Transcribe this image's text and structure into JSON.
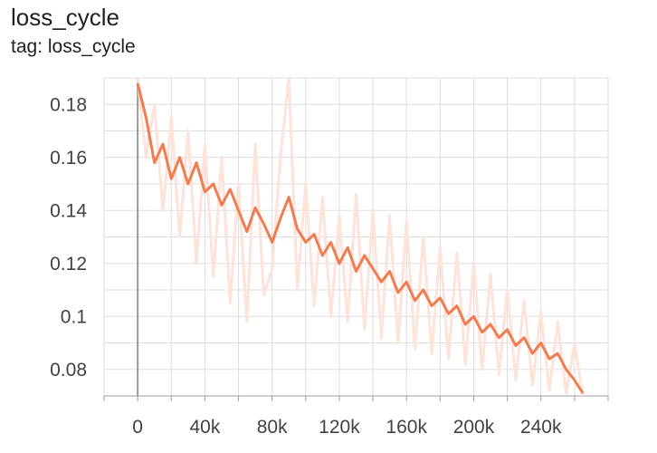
{
  "header": {
    "title": "loss_cycle",
    "subtitle": "tag: loss_cycle"
  },
  "colors": {
    "smoothed": "#f07c50",
    "raw": "#fde3d9",
    "grid": "#dddddd",
    "axis": "#9e9e9e"
  },
  "chart_data": {
    "type": "line",
    "title": "loss_cycle",
    "subtitle": "tag: loss_cycle",
    "xlabel": "",
    "ylabel": "",
    "xlim": [
      -20000,
      280000
    ],
    "ylim": [
      0.07,
      0.19
    ],
    "x_ticks": [
      0,
      40000,
      80000,
      120000,
      160000,
      200000,
      240000
    ],
    "x_tick_labels": [
      "0",
      "40k",
      "80k",
      "120k",
      "160k",
      "200k",
      "240k"
    ],
    "y_ticks": [
      0.08,
      0.1,
      0.12,
      0.14,
      0.16,
      0.18
    ],
    "y_tick_labels": [
      "0.08",
      "0.1",
      "0.12",
      "0.14",
      "0.16",
      "0.18"
    ],
    "grid": true,
    "legend": "none",
    "series": [
      {
        "role": "smoothed",
        "x": [
          0,
          5000,
          10000,
          15000,
          20000,
          25000,
          30000,
          35000,
          40000,
          45000,
          50000,
          55000,
          60000,
          65000,
          70000,
          75000,
          80000,
          85000,
          90000,
          95000,
          100000,
          105000,
          110000,
          115000,
          120000,
          125000,
          130000,
          135000,
          140000,
          145000,
          150000,
          155000,
          160000,
          165000,
          170000,
          175000,
          180000,
          185000,
          190000,
          195000,
          200000,
          205000,
          210000,
          215000,
          220000,
          225000,
          230000,
          235000,
          240000,
          245000,
          250000,
          255000,
          260000,
          265000
        ],
        "y": [
          0.188,
          0.175,
          0.158,
          0.165,
          0.152,
          0.16,
          0.15,
          0.158,
          0.147,
          0.15,
          0.142,
          0.148,
          0.14,
          0.132,
          0.141,
          0.135,
          0.128,
          0.137,
          0.145,
          0.133,
          0.128,
          0.131,
          0.123,
          0.128,
          0.12,
          0.126,
          0.117,
          0.123,
          0.118,
          0.113,
          0.117,
          0.109,
          0.113,
          0.106,
          0.11,
          0.104,
          0.107,
          0.101,
          0.104,
          0.097,
          0.1,
          0.094,
          0.097,
          0.092,
          0.095,
          0.089,
          0.092,
          0.086,
          0.09,
          0.084,
          0.086,
          0.08,
          0.076,
          0.071
        ]
      },
      {
        "role": "raw",
        "x": [
          0,
          5000,
          10000,
          15000,
          20000,
          25000,
          30000,
          35000,
          40000,
          45000,
          50000,
          55000,
          60000,
          65000,
          70000,
          75000,
          80000,
          85000,
          90000,
          95000,
          100000,
          105000,
          110000,
          115000,
          120000,
          125000,
          130000,
          135000,
          140000,
          145000,
          150000,
          155000,
          160000,
          165000,
          170000,
          175000,
          180000,
          185000,
          190000,
          195000,
          200000,
          205000,
          210000,
          215000,
          220000,
          225000,
          230000,
          235000,
          240000,
          245000,
          250000,
          255000,
          260000,
          265000
        ],
        "y": [
          0.19,
          0.16,
          0.18,
          0.14,
          0.175,
          0.13,
          0.17,
          0.12,
          0.165,
          0.115,
          0.16,
          0.105,
          0.15,
          0.098,
          0.165,
          0.108,
          0.118,
          0.16,
          0.19,
          0.11,
          0.15,
          0.104,
          0.145,
          0.1,
          0.138,
          0.098,
          0.146,
          0.095,
          0.14,
          0.092,
          0.138,
          0.09,
          0.136,
          0.088,
          0.13,
          0.086,
          0.126,
          0.084,
          0.124,
          0.082,
          0.12,
          0.08,
          0.116,
          0.078,
          0.11,
          0.076,
          0.106,
          0.074,
          0.102,
          0.072,
          0.098,
          0.071,
          0.09,
          0.07
        ]
      }
    ]
  }
}
